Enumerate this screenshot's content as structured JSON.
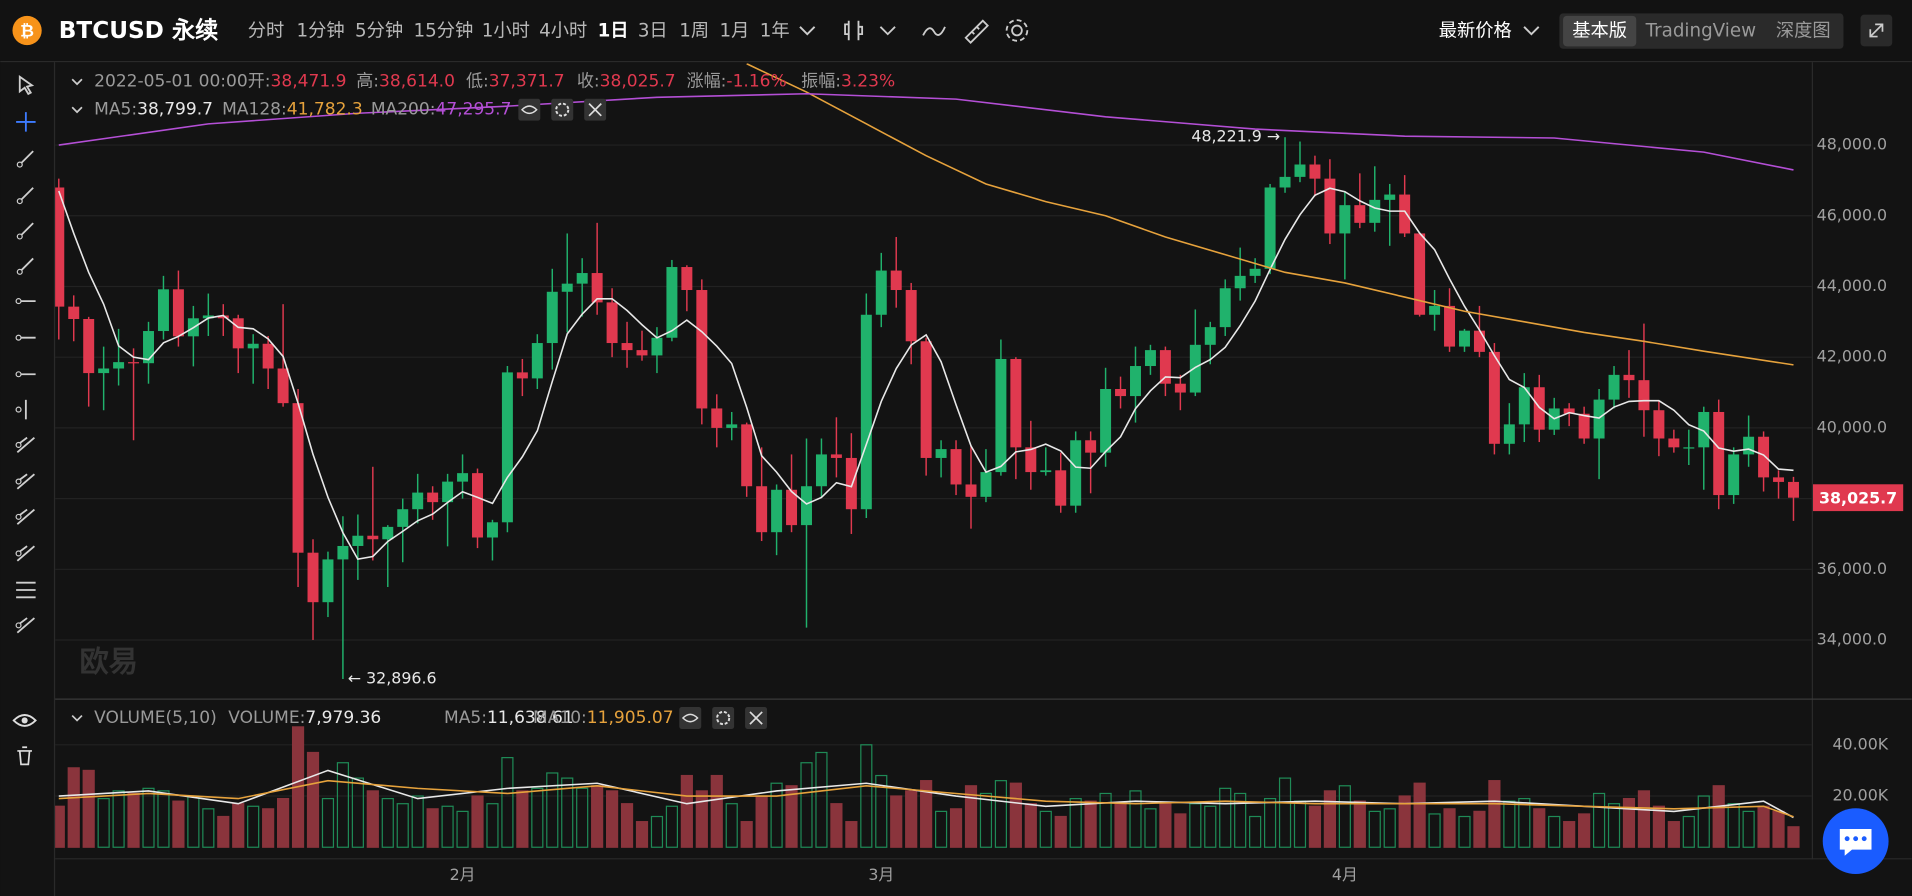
{
  "header": {
    "symbol": "BTCUSD 永续",
    "intervals": [
      "分时",
      "1分钟",
      "5分钟",
      "15分钟",
      "1小时",
      "4小时",
      "1日",
      "3日",
      "1周",
      "1月",
      "1年"
    ],
    "active_interval": 6,
    "price_mode": "最新价格",
    "views": [
      "基本版",
      "TradingView",
      "深度图"
    ],
    "active_view": 0
  },
  "watermark": "欧易",
  "chart_data": {
    "type": "candlestick",
    "date": "2022-05-01 00:00",
    "ohlc_legend": [
      {
        "label": "开:",
        "value": "38,471.9"
      },
      {
        "label": "高:",
        "value": "38,614.0"
      },
      {
        "label": "低:",
        "value": "37,371.7"
      },
      {
        "label": "收:",
        "value": "38,025.7"
      },
      {
        "label": "涨幅:",
        "value": "-1.16%"
      },
      {
        "label": "振幅:",
        "value": "3.23%"
      }
    ],
    "up_color": "#20b26c",
    "down_color": "#e0394f",
    "categories": [
      null,
      null,
      null,
      null,
      null,
      null,
      null,
      null,
      null,
      null,
      null,
      null,
      null,
      null,
      null,
      null,
      null,
      null,
      null,
      null,
      null,
      null,
      null,
      null,
      null,
      null,
      null,
      "2月",
      null,
      null,
      null,
      null,
      null,
      null,
      null,
      null,
      null,
      null,
      null,
      null,
      null,
      null,
      null,
      null,
      null,
      null,
      null,
      null,
      null,
      null,
      null,
      null,
      null,
      null,
      null,
      "3月",
      null,
      null,
      null,
      null,
      null,
      null,
      null,
      null,
      null,
      null,
      null,
      null,
      null,
      null,
      null,
      null,
      null,
      null,
      null,
      null,
      null,
      null,
      null,
      null,
      null,
      null,
      null,
      null,
      null,
      null,
      "4月",
      null,
      null,
      null,
      null,
      null,
      null,
      null,
      null,
      null,
      null,
      null,
      null,
      null,
      null,
      null,
      null,
      null,
      null,
      null,
      null,
      null,
      null,
      null,
      null,
      null,
      null,
      null,
      null,
      null,
      null
    ],
    "open": [
      46800,
      43430,
      43080,
      41550,
      41680,
      41860,
      41830,
      42740,
      43920,
      42590,
      43100,
      43180,
      43100,
      42250,
      42380,
      41680,
      40700,
      36470,
      35070,
      36280,
      36660,
      36950,
      36850,
      37200,
      37700,
      38170,
      37900,
      38480,
      38720,
      36900,
      37330,
      41570,
      41400,
      42400,
      43850,
      44080,
      44380,
      43550,
      42400,
      42200,
      42050,
      42550,
      44550,
      43900,
      40550,
      40000,
      40100,
      38350,
      37050,
      38250,
      37250,
      38350,
      39250,
      39150,
      37700,
      43200,
      44450,
      43900,
      42450,
      39150,
      39400,
      38400,
      38050,
      38750,
      41950,
      39450,
      38750,
      38800,
      37800,
      39650,
      39300,
      41100,
      40900,
      41750,
      42200,
      41250,
      41000,
      42350,
      42850,
      43950,
      44300,
      44500,
      46800,
      47100,
      47450,
      47050,
      45500,
      46300,
      45800,
      46450,
      46600,
      45500,
      43200,
      43450,
      42300,
      42750,
      42150,
      39550,
      40100,
      41150,
      39950,
      40550,
      40400,
      39700,
      40800,
      41500,
      41350,
      40500,
      39700,
      39450,
      39450,
      40450,
      38100,
      39250,
      39750,
      38600,
      38471.9
    ],
    "high": [
      47050,
      43750,
      43140,
      42300,
      42800,
      42250,
      43000,
      44300,
      44450,
      43450,
      43800,
      43500,
      43200,
      42650,
      42600,
      43500,
      41100,
      36850,
      36500,
      37500,
      37550,
      38900,
      37250,
      38000,
      38700,
      38350,
      38700,
      39250,
      38850,
      37400,
      41750,
      41950,
      42650,
      44500,
      45500,
      44800,
      45800,
      43950,
      43000,
      42750,
      42850,
      44750,
      44600,
      44200,
      40950,
      40450,
      40150,
      39450,
      38400,
      39250,
      39700,
      39700,
      40300,
      39850,
      43800,
      44950,
      45400,
      44100,
      42550,
      39650,
      39650,
      39500,
      39400,
      42500,
      42000,
      40200,
      39450,
      39300,
      39900,
      39900,
      41700,
      41450,
      42300,
      42350,
      42300,
      41500,
      43350,
      43000,
      44200,
      45100,
      44800,
      46900,
      48221.9,
      48100,
      47700,
      47600,
      46700,
      47200,
      47400,
      46900,
      47150,
      45500,
      43900,
      43950,
      42800,
      43450,
      42400,
      40700,
      41550,
      41500,
      40850,
      40700,
      40600,
      41100,
      41750,
      42200,
      42950,
      40750,
      39950,
      39950,
      40600,
      40800,
      39450,
      40350,
      39900,
      38800,
      38614
    ],
    "low": [
      42500,
      42450,
      40600,
      40500,
      41200,
      39650,
      41250,
      42500,
      42300,
      41740,
      42600,
      42600,
      41550,
      41250,
      41100,
      40600,
      35500,
      34000,
      34650,
      32896.6,
      35700,
      36250,
      35500,
      36200,
      37300,
      37400,
      36650,
      38000,
      36600,
      36250,
      37050,
      40900,
      41100,
      41650,
      42700,
      43150,
      43200,
      42000,
      41700,
      41900,
      41550,
      42450,
      43300,
      40100,
      39450,
      39650,
      38050,
      36800,
      36400,
      37050,
      34350,
      38050,
      38600,
      37000,
      37450,
      42850,
      43400,
      41800,
      38650,
      38600,
      38100,
      37150,
      37900,
      38650,
      38550,
      38250,
      38650,
      37600,
      37600,
      38150,
      38900,
      40550,
      40150,
      41500,
      40900,
      40500,
      40900,
      41800,
      42600,
      43600,
      44100,
      44350,
      46650,
      46950,
      46550,
      45200,
      44200,
      45650,
      45550,
      45150,
      45400,
      43150,
      42750,
      42150,
      42150,
      42000,
      39250,
      39250,
      39600,
      39600,
      39800,
      40050,
      39550,
      38550,
      40550,
      40850,
      39750,
      39200,
      39300,
      38950,
      38250,
      37700,
      37850,
      38900,
      38200,
      38000,
      37371.7
    ],
    "close": [
      43430,
      43080,
      41550,
      41680,
      41860,
      41830,
      42740,
      43920,
      42590,
      43100,
      43180,
      43100,
      42250,
      42380,
      41680,
      40700,
      36470,
      35070,
      36280,
      36660,
      36950,
      36850,
      37200,
      37700,
      38170,
      37900,
      38480,
      38720,
      36900,
      37330,
      41570,
      41400,
      42400,
      43850,
      44080,
      44380,
      43550,
      42400,
      42200,
      42050,
      42550,
      44550,
      43900,
      40550,
      40000,
      40100,
      38350,
      37050,
      38250,
      37250,
      38350,
      39250,
      39150,
      37700,
      43200,
      44450,
      43900,
      42450,
      39150,
      39400,
      38400,
      38050,
      38750,
      41950,
      39450,
      38750,
      38800,
      37800,
      39650,
      39300,
      41100,
      40900,
      41750,
      42200,
      41250,
      41000,
      42350,
      42850,
      43950,
      44300,
      44500,
      46800,
      47100,
      47450,
      47050,
      45500,
      46300,
      45800,
      46450,
      46600,
      45500,
      43200,
      43450,
      42300,
      42750,
      42150,
      39550,
      40100,
      41150,
      39950,
      40550,
      40400,
      39700,
      40800,
      41500,
      41350,
      40500,
      39700,
      39450,
      39450,
      40450,
      38100,
      39250,
      39750,
      38600,
      38471.9,
      38025.7
    ],
    "last_price_label": "38,025.7",
    "annotations": [
      {
        "label": "48,221.9 →"
      },
      {
        "label": "← 32,896.6"
      }
    ],
    "ylim": [
      32380,
      50310
    ],
    "yticks": [
      {
        "value": 34000,
        "label": "34,000.0"
      },
      {
        "value": 36000,
        "label": "36,000.0"
      },
      {
        "value": 38000,
        "label": "38,000.0"
      },
      {
        "value": 40000,
        "label": "40,000.0"
      },
      {
        "value": 42000,
        "label": "42,000.0"
      },
      {
        "value": 44000,
        "label": "44,000.0"
      },
      {
        "value": 46000,
        "label": "46,000.0"
      },
      {
        "value": 48000,
        "label": "48,000.0"
      }
    ],
    "grid": true,
    "ma_lines": [
      {
        "name": "MA5:",
        "legend_value": "38,799.7",
        "color": "#e8e8e8",
        "values": [
          46700,
          45500,
          44400,
          43500,
          42320,
          42000,
          41932,
          42406,
          42588,
          42836,
          43106,
          43178,
          42844,
          42802,
          42518,
          42022,
          40696,
          39260,
          38040,
          37036,
          36286,
          36362,
          36788,
          37072,
          37374,
          37564,
          37890,
          38194,
          38034,
          37866,
          38600,
          39184,
          39920,
          41310,
          42660,
          43222,
          43652,
          43652,
          43322,
          42916,
          42550,
          42750,
          43050,
          42720,
          42310,
          41820,
          40580,
          39210,
          38750,
          38200,
          37850,
          38030,
          38450,
          38340,
          39530,
          40750,
          41680,
          42340,
          42630,
          41870,
          40660,
          39490,
          38750,
          38910,
          39320,
          39390,
          39540,
          39350,
          38890,
          38860,
          39330,
          39750,
          40540,
          41050,
          41440,
          41420,
          41710,
          41930,
          42280,
          42890,
          43590,
          44480,
          45330,
          46030,
          46580,
          46780,
          46680,
          46420,
          46220,
          46130,
          46130,
          45510,
          45040,
          44210,
          43440,
          42770,
          42040,
          41370,
          41140,
          40580,
          40260,
          40430,
          40350,
          40280,
          40590,
          40750,
          40770,
          40770,
          40500,
          40090,
          39910,
          39430,
          39340,
          39400,
          39230,
          38834,
          38799.7
        ]
      },
      {
        "name": "MA128:",
        "legend_value": "41,782.3",
        "color": "#e6a23c",
        "x": [
          46,
          50,
          54,
          58,
          62,
          66,
          70,
          74,
          78,
          82,
          86,
          90,
          94,
          98,
          102,
          106,
          110,
          116
        ],
        "values": [
          50300,
          49500,
          48600,
          47700,
          46900,
          46400,
          46000,
          45400,
          44900,
          44400,
          44100,
          43700,
          43300,
          43000,
          42700,
          42450,
          42170,
          41782.3
        ]
      },
      {
        "name": "MA200:",
        "legend_value": "47,295.7",
        "color": "#b44fd6",
        "x": [
          0,
          10,
          20,
          30,
          40,
          50,
          60,
          70,
          80,
          90,
          100,
          110,
          116
        ],
        "values": [
          48000,
          48600,
          48900,
          49100,
          49350,
          49450,
          49300,
          48800,
          48450,
          48250,
          48200,
          47800,
          47295.7
        ]
      }
    ],
    "volume": {
      "title": "VOLUME(5,10)",
      "name": "VOLUME:",
      "legend_value": "7,979.36",
      "up_color": "#1f8a56",
      "down_color": "#8a343c",
      "values": [
        16000,
        31000,
        30000,
        19000,
        22000,
        21000,
        23000,
        22000,
        18000,
        20000,
        15000,
        12000,
        17000,
        16000,
        15000,
        19000,
        47000,
        37000,
        19000,
        33000,
        27000,
        22000,
        19000,
        17000,
        20000,
        15000,
        16000,
        14000,
        20000,
        17000,
        35000,
        22000,
        23000,
        29000,
        27000,
        23000,
        24000,
        22000,
        17000,
        10000,
        12000,
        16000,
        28000,
        22000,
        28000,
        17000,
        10000,
        20000,
        25000,
        24000,
        33000,
        37000,
        17000,
        10000,
        40000,
        28000,
        20000,
        22000,
        26000,
        14000,
        15000,
        24000,
        21000,
        26000,
        25000,
        17000,
        14000,
        12000,
        19000,
        18000,
        21000,
        17000,
        22000,
        15000,
        17000,
        13000,
        17000,
        16000,
        23000,
        21000,
        12000,
        19000,
        27000,
        18000,
        16000,
        22000,
        24000,
        18000,
        14000,
        15000,
        20000,
        25000,
        13000,
        15000,
        12000,
        14000,
        26000,
        18000,
        19000,
        15000,
        12000,
        10000,
        13000,
        21000,
        17000,
        19000,
        22000,
        16000,
        10000,
        12000,
        20000,
        24000,
        17000,
        14000,
        16000,
        14000,
        7979.36
      ],
      "ylim": [
        0,
        55700
      ],
      "yticks": [
        {
          "value": 20000,
          "label": "20.00K"
        },
        {
          "value": 40000,
          "label": "40.00K"
        }
      ],
      "ma_lines": [
        {
          "name": "MA5:",
          "legend_value": "11,638.61",
          "color": "#e8e8e8",
          "x": [
            0,
            6,
            12,
            18,
            24,
            30,
            36,
            42,
            48,
            54,
            60,
            66,
            72,
            78,
            84,
            90,
            96,
            102,
            108,
            114,
            116
          ],
          "values": [
            20000,
            22000,
            17000,
            30000,
            19000,
            23000,
            25000,
            17000,
            22000,
            25000,
            20000,
            16000,
            18000,
            17000,
            18000,
            17000,
            18000,
            16000,
            14000,
            18000,
            11638.61
          ]
        },
        {
          "name": "MA10:",
          "legend_value": "11,905.07",
          "color": "#e6a23c",
          "x": [
            0,
            6,
            12,
            18,
            24,
            30,
            36,
            42,
            48,
            54,
            60,
            66,
            72,
            78,
            84,
            90,
            96,
            102,
            108,
            114,
            116
          ],
          "values": [
            19000,
            21000,
            19000,
            26000,
            23000,
            21000,
            24000,
            20000,
            20000,
            24000,
            21000,
            18000,
            17000,
            18000,
            17000,
            17000,
            17000,
            16000,
            15000,
            16000,
            11905.07
          ]
        }
      ]
    }
  }
}
